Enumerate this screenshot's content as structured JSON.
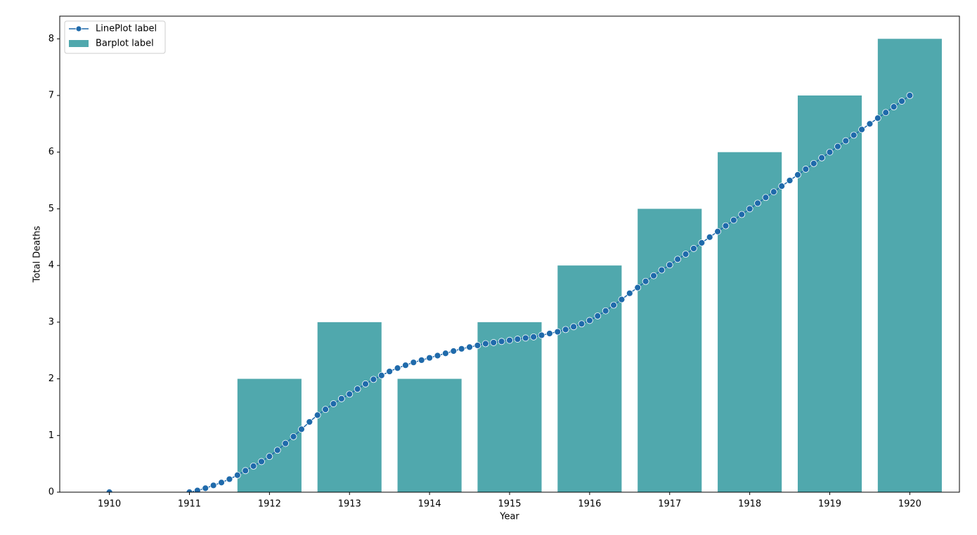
{
  "chart_data": {
    "type": "bar_line",
    "x_label": "Year",
    "y_label": "Total Deaths",
    "categories": [
      "1910",
      "1911",
      "1912",
      "1913",
      "1914",
      "1915",
      "1916",
      "1917",
      "1918",
      "1919",
      "1920"
    ],
    "series": [
      {
        "name": "Barplot label",
        "kind": "bar",
        "color": "#50a8ad",
        "values": [
          0,
          0,
          2,
          3,
          2,
          3,
          4,
          5,
          6,
          7,
          8
        ]
      },
      {
        "name": "LinePlot label",
        "kind": "line",
        "color": "#1f6aab",
        "x": [
          1910,
          1910.1,
          1910.2,
          1910.3,
          1910.4,
          1910.5,
          1910.6,
          1910.7,
          1910.8,
          1910.9,
          1911,
          1911.1,
          1911.2,
          1911.3,
          1911.4,
          1911.5,
          1911.6,
          1911.7,
          1911.8,
          1911.9,
          1912,
          1912.1,
          1912.2,
          1912.3,
          1912.4,
          1912.5,
          1912.6,
          1912.7,
          1912.8,
          1912.9,
          1913,
          1913.1,
          1913.2,
          1913.3,
          1913.4,
          1913.5,
          1913.6,
          1913.7,
          1913.8,
          1913.9,
          1914,
          1914.1,
          1914.2,
          1914.3,
          1914.4,
          1914.5,
          1914.6,
          1914.7,
          1914.8,
          1914.9,
          1915,
          1915.1,
          1915.2,
          1915.3,
          1915.4,
          1915.5,
          1915.6,
          1915.7,
          1915.8,
          1915.9,
          1916,
          1916.1,
          1916.2,
          1916.3,
          1916.4,
          1916.5,
          1916.6,
          1916.7,
          1916.8,
          1916.9,
          1917,
          1917.1,
          1917.2,
          1917.3,
          1917.4,
          1917.5,
          1917.6,
          1917.7,
          1917.8,
          1917.9,
          1918,
          1918.1,
          1918.2,
          1918.3,
          1918.4,
          1918.5,
          1918.6,
          1918.7,
          1918.8,
          1918.9,
          1919,
          1919.1,
          1919.2,
          1919.3,
          1919.4,
          1919.5,
          1919.6,
          1919.7,
          1919.8,
          1919.9,
          1920
        ],
        "values": [
          0,
          null,
          null,
          null,
          null,
          null,
          null,
          null,
          null,
          null,
          0,
          0.03,
          0.07,
          0.12,
          0.17,
          0.23,
          0.3,
          0.38,
          0.46,
          0.54,
          0.63,
          0.74,
          0.86,
          0.98,
          1.11,
          1.24,
          1.36,
          1.46,
          1.56,
          1.65,
          1.73,
          1.82,
          1.91,
          1.99,
          2.06,
          2.13,
          2.19,
          2.24,
          2.29,
          2.33,
          2.37,
          2.41,
          2.45,
          2.49,
          2.53,
          2.56,
          2.59,
          2.62,
          2.64,
          2.66,
          2.68,
          2.7,
          2.72,
          2.74,
          2.77,
          2.8,
          2.83,
          2.87,
          2.92,
          2.97,
          3.03,
          3.11,
          3.2,
          3.3,
          3.4,
          3.51,
          3.61,
          3.72,
          3.82,
          3.92,
          4.01,
          4.11,
          4.2,
          4.3,
          4.4,
          4.5,
          4.6,
          4.7,
          4.8,
          4.9,
          5,
          5.1,
          5.2,
          5.3,
          5.4,
          5.5,
          5.6,
          5.7,
          5.8,
          5.9,
          6,
          6.1,
          6.2,
          6.3,
          6.4,
          6.5,
          6.6,
          6.7,
          6.8,
          6.9,
          7
        ]
      }
    ],
    "ylim": [
      0,
      8.4
    ],
    "yticks": [
      0,
      1,
      2,
      3,
      4,
      5,
      6,
      7,
      8
    ],
    "legend": "upper left"
  }
}
